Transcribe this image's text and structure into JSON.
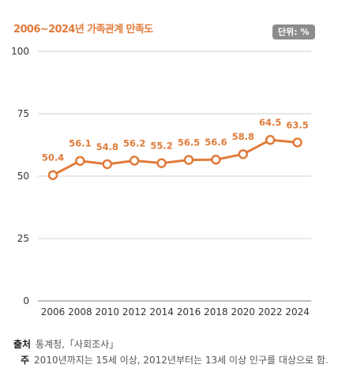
{
  "header": {
    "title": "2006~2024년 가족관계 만족도",
    "unit": "단위: %"
  },
  "chart_data": {
    "type": "line",
    "title": "2006~2024년 가족관계 만족도",
    "unit": "%",
    "x": [
      "2006",
      "2008",
      "2010",
      "2012",
      "2014",
      "2016",
      "2018",
      "2020",
      "2022",
      "2024"
    ],
    "series": [
      {
        "values": [
          50.4,
          56.1,
          54.8,
          56.2,
          55.2,
          56.5,
          56.6,
          58.8,
          64.5,
          63.5
        ]
      }
    ],
    "ylim": [
      0,
      100
    ],
    "yticks": [
      0,
      25,
      50,
      75,
      100
    ],
    "grid": true,
    "color": "#e07b3a"
  },
  "footer": {
    "source_label": "출처",
    "source_text": "통계청,「사회조사」",
    "note_label": "주",
    "note_text": "2010년까지는 15세 이상, 2012년부터는 13세 이상 인구를 대상으로 함."
  }
}
